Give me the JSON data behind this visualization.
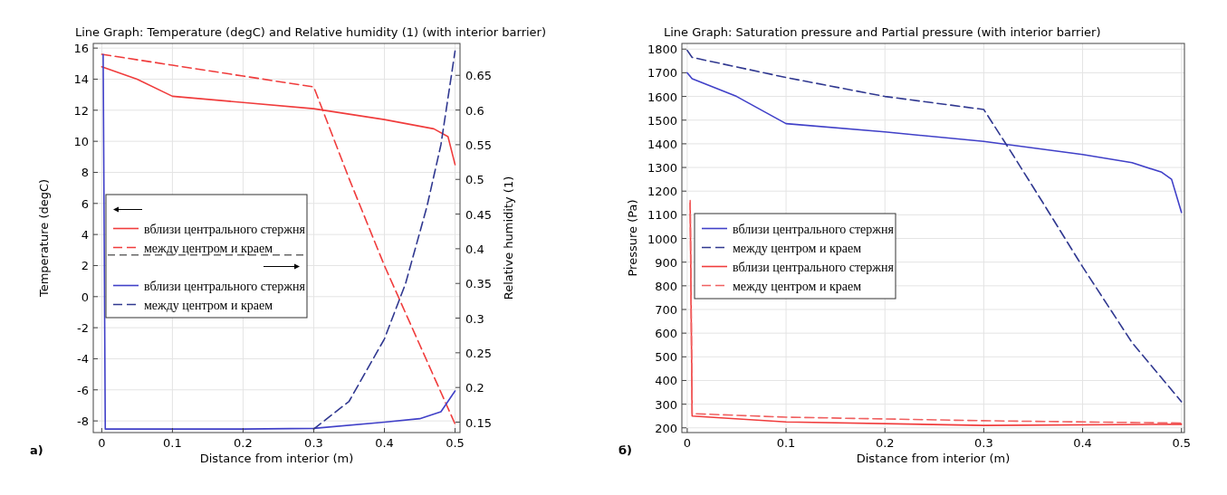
{
  "chart_data": [
    {
      "type": "line",
      "title": "Line Graph: Temperature (degC) and Relative humidity (1) (with interior barrier)",
      "xlabel": "Distance from interior (m)",
      "ylabel": "Temperature (degC)",
      "y2label": "Relative humidity (1)",
      "xlim": [
        -0.012,
        0.507
      ],
      "xticks": [
        0,
        0.1,
        0.2,
        0.3,
        0.4,
        0.5
      ],
      "ylim": [
        -8.75,
        16.3
      ],
      "yticks": [
        -8,
        -6,
        -4,
        -2,
        0,
        2,
        4,
        6,
        8,
        10,
        12,
        14,
        16
      ],
      "y2lim": [
        0.135,
        0.696
      ],
      "y2ticks": [
        0.15,
        0.2,
        0.25,
        0.3,
        0.35,
        0.4,
        0.45,
        0.5,
        0.55,
        0.6,
        0.65
      ],
      "grid": true,
      "legend": "center left",
      "annotations": [
        "a)"
      ],
      "series": [
        {
          "name": "вблизи центрального стержня",
          "line_style": "solid",
          "color": "#f03c3c",
          "x": [
            0,
            0.05,
            0.1,
            0.2,
            0.3,
            0.4,
            0.47,
            0.49,
            0.5
          ],
          "values": [
            14.8,
            14,
            12.9,
            12.5,
            12.1,
            11.4,
            10.8,
            10.3,
            8.5
          ]
        },
        {
          "name": "между центром и краем",
          "line_style": "dashed",
          "color": "#f03c3c",
          "x": [
            0,
            0.1,
            0.2,
            0.3,
            0.35,
            0.4,
            0.45,
            0.5
          ],
          "values": [
            15.6,
            14.9,
            14.2,
            13.5,
            7.6,
            2,
            -3.1,
            -8.2
          ]
        },
        {
          "name": "вблизи центрального стержня",
          "line_style": "solid",
          "color": "#4040c8",
          "axis": "y2",
          "x": [
            0.002,
            0.005,
            0.1,
            0.2,
            0.3,
            0.4,
            0.45,
            0.48,
            0.5
          ],
          "values": [
            0.68,
            0.14,
            0.14,
            0.14,
            0.141,
            0.15,
            0.155,
            0.165,
            0.195
          ]
        },
        {
          "name": "между центром и краем",
          "line_style": "dashed",
          "color": "#303890",
          "axis": "y2",
          "x": [
            0.3,
            0.35,
            0.4,
            0.43,
            0.46,
            0.48,
            0.5
          ],
          "values": [
            0.14,
            0.18,
            0.27,
            0.35,
            0.46,
            0.55,
            0.685
          ]
        }
      ]
    },
    {
      "type": "line",
      "title": "Line Graph: Saturation pressure and Partial pressure (with interior barrier)",
      "xlabel": "Distance from interior (m)",
      "ylabel": "Pressure (Pa)",
      "xlim": [
        -0.0054,
        0.503
      ],
      "xticks": [
        0,
        0.1,
        0.2,
        0.3,
        0.4,
        0.5
      ],
      "ylim": [
        180,
        1824
      ],
      "yticks": [
        200,
        300,
        400,
        500,
        600,
        700,
        800,
        900,
        1000,
        1100,
        1200,
        1300,
        1400,
        1500,
        1600,
        1700,
        1800
      ],
      "grid": true,
      "legend": "center left",
      "annotations": [
        "б)"
      ],
      "series": [
        {
          "name": "вблизи центрального стержня",
          "line_style": "solid",
          "color": "#4040c8",
          "x": [
            0,
            0.005,
            0.05,
            0.1,
            0.2,
            0.3,
            0.4,
            0.45,
            0.48,
            0.49,
            0.5
          ],
          "values": [
            1700,
            1675,
            1600,
            1485,
            1450,
            1410,
            1355,
            1320,
            1280,
            1250,
            1110
          ]
        },
        {
          "name": "между центром и краем",
          "line_style": "dashed",
          "color": "#303890",
          "x": [
            0,
            0.005,
            0.1,
            0.2,
            0.3,
            0.33,
            0.36,
            0.4,
            0.45,
            0.5
          ],
          "values": [
            1795,
            1765,
            1680,
            1600,
            1545,
            1350,
            1150,
            880,
            560,
            310
          ]
        },
        {
          "name": "вблизи центрального стержня",
          "line_style": "solid",
          "color": "#f03c3c",
          "x": [
            0.003,
            0.005,
            0.1,
            0.3,
            0.5
          ],
          "values": [
            1150,
            250,
            225,
            210,
            215
          ]
        },
        {
          "name": "между центром и краем",
          "line_style": "dashed",
          "color": "#f06060",
          "x": [
            0.003,
            0.005,
            0.1,
            0.3,
            0.5
          ],
          "values": [
            1160,
            260,
            245,
            230,
            220
          ]
        }
      ]
    }
  ]
}
